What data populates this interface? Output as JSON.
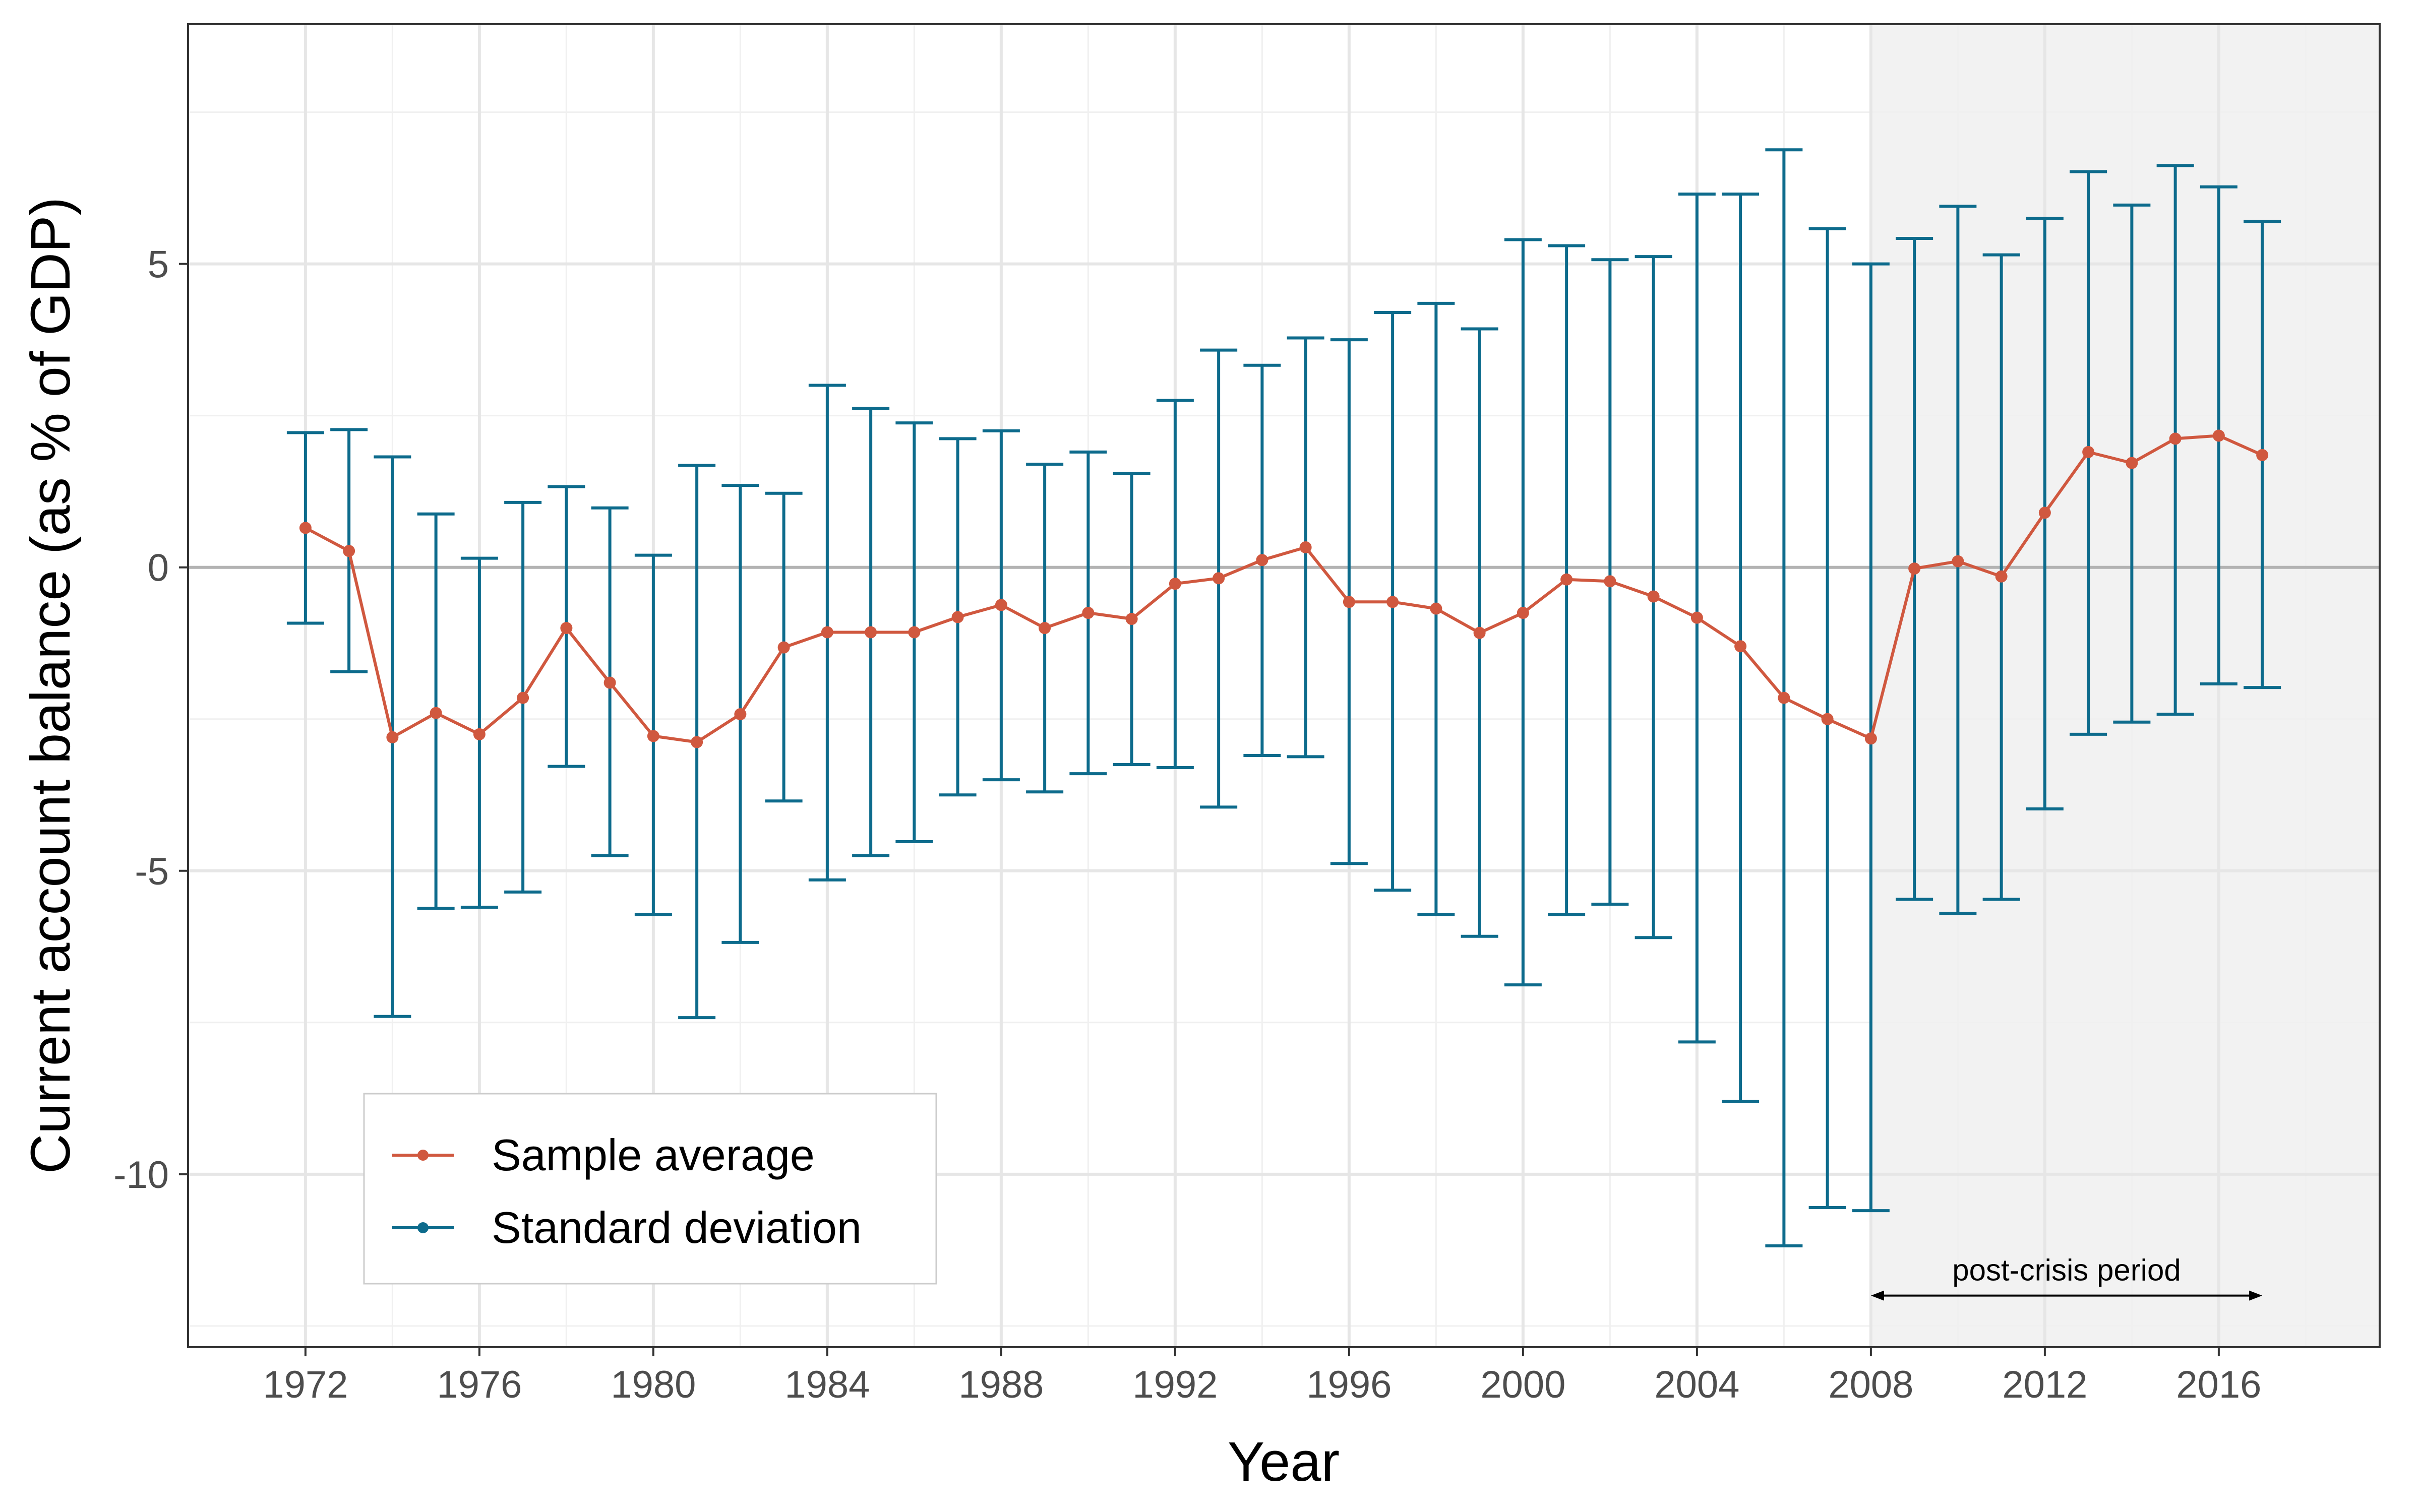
{
  "chart_data": {
    "type": "line",
    "xlabel": "Year",
    "ylabel": "Current account balance (as % of GDP)",
    "x_ticks": [
      1972,
      1976,
      1980,
      1984,
      1988,
      1992,
      1996,
      2000,
      2004,
      2008,
      2012,
      2016
    ],
    "y_ticks": [
      -10,
      -5,
      0,
      5
    ],
    "y_tick_labels": [
      "-10",
      "-5",
      "0",
      "5"
    ],
    "xlim": [
      1969.3,
      2019.7
    ],
    "ylim": [
      -12.85,
      8.95
    ],
    "grid": true,
    "legend_position": "bottom-left",
    "x": [
      1972,
      1973,
      1974,
      1975,
      1976,
      1977,
      1978,
      1979,
      1980,
      1981,
      1982,
      1983,
      1984,
      1985,
      1986,
      1987,
      1988,
      1989,
      1990,
      1991,
      1992,
      1993,
      1994,
      1995,
      1996,
      1997,
      1998,
      1999,
      2000,
      2001,
      2002,
      2003,
      2004,
      2005,
      2006,
      2007,
      2008,
      2009,
      2010,
      2011,
      2012,
      2013,
      2014,
      2015,
      2016,
      2017
    ],
    "series": [
      {
        "name": "Sample average",
        "color": "#d0583f",
        "values": [
          0.65,
          0.27,
          -2.8,
          -2.4,
          -2.75,
          -2.15,
          -1.0,
          -1.9,
          -2.78,
          -2.88,
          -2.42,
          -1.32,
          -1.07,
          -1.07,
          -1.07,
          -0.82,
          -0.62,
          -1.0,
          -0.75,
          -0.85,
          -0.27,
          -0.18,
          0.12,
          0.33,
          -0.57,
          -0.57,
          -0.68,
          -1.08,
          -0.75,
          -0.2,
          -0.23,
          -0.48,
          -0.83,
          -1.3,
          -2.15,
          -2.5,
          -2.82,
          -0.02,
          0.1,
          -0.15,
          0.9,
          1.9,
          1.72,
          2.12,
          2.17,
          1.85
        ]
      },
      {
        "name": "Standard deviation",
        "color": "#0d6b8c",
        "low": [
          -0.92,
          -1.72,
          -7.4,
          -5.62,
          -5.6,
          -5.35,
          -3.28,
          -4.75,
          -5.72,
          -7.42,
          -6.18,
          -3.85,
          -5.15,
          -4.75,
          -4.52,
          -3.75,
          -3.5,
          -3.7,
          -3.4,
          -3.25,
          -3.3,
          -3.95,
          -3.1,
          -3.12,
          -4.88,
          -5.32,
          -5.72,
          -6.08,
          -6.88,
          -5.72,
          -5.55,
          -6.1,
          -7.82,
          -8.8,
          -11.18,
          -10.55,
          -10.6,
          -5.47,
          -5.7,
          -5.47,
          -3.98,
          -2.75,
          -2.55,
          -2.42,
          -1.92,
          -1.98
        ],
        "high": [
          2.22,
          2.27,
          1.82,
          0.88,
          0.15,
          1.07,
          1.33,
          0.98,
          0.2,
          1.68,
          1.35,
          1.22,
          3.0,
          2.62,
          2.38,
          2.12,
          2.25,
          1.7,
          1.9,
          1.55,
          2.75,
          3.58,
          3.33,
          3.78,
          3.75,
          4.2,
          4.35,
          3.93,
          5.4,
          5.3,
          5.07,
          5.12,
          6.15,
          6.15,
          6.88,
          5.58,
          5.0,
          5.42,
          5.95,
          5.15,
          5.75,
          6.52,
          5.97,
          6.62,
          6.27,
          5.7
        ]
      }
    ],
    "shaded_region": {
      "x_start": 2008,
      "label": "post-crisis period"
    }
  }
}
